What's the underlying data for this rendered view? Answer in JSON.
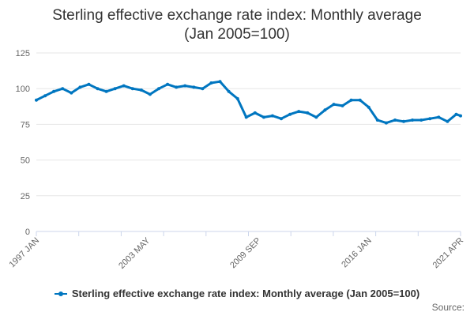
{
  "chart_data": {
    "type": "line",
    "title_lines": [
      "Sterling effective exchange rate index: Monthly average",
      "(Jan 2005=100)"
    ],
    "xlabel": "",
    "ylabel": "",
    "ylim": [
      0,
      125
    ],
    "yticks": [
      "0",
      "25",
      "50",
      "75",
      "100",
      "125"
    ],
    "xtick_labels": [
      "1997 JAN",
      "2003 MAY",
      "2009 SEP",
      "2016 JAN",
      "2021 APR"
    ],
    "xrange": [
      "1997-01",
      "2021-04"
    ],
    "grid": true,
    "legend_position": "bottom",
    "color": "#0076c0",
    "series": [
      {
        "name": "Sterling effective exchange rate index: Monthly average (Jan 2005=100)",
        "x": [
          "1997-01",
          "1997-07",
          "1998-01",
          "1998-07",
          "1999-01",
          "1999-07",
          "2000-01",
          "2000-07",
          "2001-01",
          "2001-07",
          "2002-01",
          "2002-07",
          "2003-01",
          "2003-07",
          "2004-01",
          "2004-07",
          "2005-01",
          "2005-07",
          "2006-01",
          "2006-07",
          "2007-01",
          "2007-07",
          "2008-01",
          "2008-07",
          "2009-01",
          "2009-07",
          "2010-01",
          "2010-07",
          "2011-01",
          "2011-07",
          "2012-01",
          "2012-07",
          "2013-01",
          "2013-07",
          "2014-01",
          "2014-07",
          "2015-01",
          "2015-07",
          "2016-01",
          "2016-07",
          "2017-01",
          "2017-07",
          "2018-01",
          "2018-07",
          "2019-01",
          "2019-07",
          "2020-01",
          "2020-07",
          "2021-01",
          "2021-04"
        ],
        "values": [
          92,
          95,
          98,
          100,
          97,
          101,
          103,
          100,
          98,
          100,
          102,
          100,
          99,
          96,
          100,
          103,
          101,
          102,
          101,
          100,
          104,
          105,
          98,
          93,
          80,
          83,
          80,
          81,
          79,
          82,
          84,
          83,
          80,
          85,
          89,
          88,
          92,
          92,
          87,
          78,
          76,
          78,
          77,
          78,
          78,
          79,
          80,
          77,
          82,
          81
        ]
      }
    ]
  },
  "legend": {
    "label": "Sterling effective exchange rate index: Monthly average (Jan 2005=100)"
  },
  "footer": {
    "source_label": "Source:"
  }
}
